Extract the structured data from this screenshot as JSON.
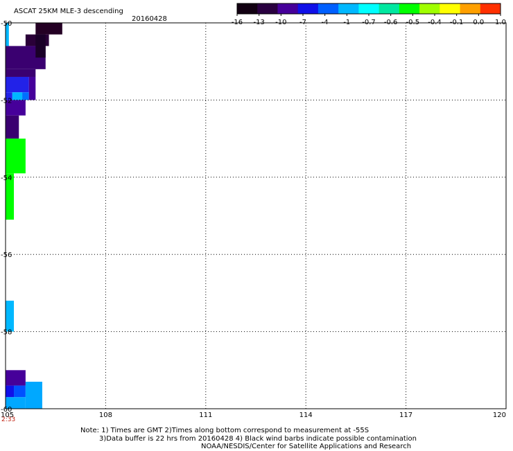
{
  "chart_data": {
    "type": "heatmap",
    "title": "ASCAT 25KM MLE-3 descending",
    "date": "20160428",
    "xlim": [
      105,
      120
    ],
    "ylim": [
      -60,
      -50
    ],
    "x_ticks": [
      "105",
      "108",
      "111",
      "114",
      "117",
      "120"
    ],
    "y_ticks": [
      "-50",
      "-52",
      "-54",
      "-56",
      "-58",
      "-60"
    ],
    "time_label": "2:33",
    "grid": true,
    "colorbar": {
      "labels": [
        "-16",
        "-13",
        "-10",
        "-7",
        "-4",
        "-1",
        "-0.7",
        "-0.6",
        "-0.5",
        "-0.4",
        "-0.1",
        "0.0",
        "1.0"
      ],
      "colors": [
        "#120012",
        "#2a0040",
        "#46009a",
        "#1010e8",
        "#0060ff",
        "#00b8ff",
        "#00ffff",
        "#00e8a0",
        "#00ff00",
        "#a0ff00",
        "#ffff00",
        "#ffa000",
        "#ff3000"
      ]
    },
    "cells": [
      {
        "x0": 105.9,
        "x1": 106.7,
        "y0": -50.0,
        "y1": -50.3,
        "color": "#240024"
      },
      {
        "x0": 105.6,
        "x1": 106.3,
        "y0": -50.3,
        "y1": -50.6,
        "color": "#2a0038"
      },
      {
        "x0": 105.0,
        "x1": 105.1,
        "y0": -50.0,
        "y1": -50.6,
        "color": "#00b8ff"
      },
      {
        "x0": 105.0,
        "x1": 106.2,
        "y0": -50.6,
        "y1": -51.2,
        "color": "#3a0070"
      },
      {
        "x0": 105.9,
        "x1": 106.2,
        "y0": -50.3,
        "y1": -50.9,
        "color": "#1a0028"
      },
      {
        "x0": 105.0,
        "x1": 105.9,
        "y0": -51.2,
        "y1": -51.4,
        "color": "#3a0070"
      },
      {
        "x0": 105.0,
        "x1": 105.7,
        "y0": -51.4,
        "y1": -51.8,
        "color": "#2222e8"
      },
      {
        "x0": 105.2,
        "x1": 105.5,
        "y0": -51.8,
        "y1": -52.0,
        "color": "#00b8ff"
      },
      {
        "x0": 105.5,
        "x1": 105.7,
        "y0": -51.8,
        "y1": -52.0,
        "color": "#0070ff"
      },
      {
        "x0": 105.0,
        "x1": 105.2,
        "y0": -51.8,
        "y1": -52.0,
        "color": "#2222e8"
      },
      {
        "x0": 105.7,
        "x1": 105.9,
        "y0": -51.4,
        "y1": -52.0,
        "color": "#46009a"
      },
      {
        "x0": 105.0,
        "x1": 105.6,
        "y0": -52.0,
        "y1": -52.4,
        "color": "#46009a"
      },
      {
        "x0": 105.0,
        "x1": 105.4,
        "y0": -52.4,
        "y1": -53.0,
        "color": "#3a0070"
      },
      {
        "x0": 105.0,
        "x1": 105.6,
        "y0": -53.0,
        "y1": -53.9,
        "color": "#00ff00"
      },
      {
        "x0": 105.0,
        "x1": 105.25,
        "y0": -53.9,
        "y1": -55.1,
        "color": "#00ff00"
      },
      {
        "x0": 105.0,
        "x1": 105.25,
        "y0": -57.2,
        "y1": -58.0,
        "color": "#00b8ff"
      },
      {
        "x0": 105.0,
        "x1": 105.6,
        "y0": -59.0,
        "y1": -59.4,
        "color": "#46009a"
      },
      {
        "x0": 105.0,
        "x1": 105.25,
        "y0": -59.4,
        "y1": -59.7,
        "color": "#1010e8"
      },
      {
        "x0": 105.25,
        "x1": 105.6,
        "y0": -59.4,
        "y1": -59.7,
        "color": "#0050ff"
      },
      {
        "x0": 105.6,
        "x1": 106.1,
        "y0": -59.3,
        "y1": -60.0,
        "color": "#00a8ff"
      },
      {
        "x0": 105.0,
        "x1": 105.6,
        "y0": -59.7,
        "y1": -60.0,
        "color": "#00a8ff"
      }
    ]
  },
  "footer": {
    "line1": "Note: 1) Times are GMT 2)Times along bottom correspond to measurement at -55S",
    "line2": "3)Data buffer is 22 hrs from 20160428 4) Black wind barbs indicate possible contamination",
    "line3": "NOAA/NESDIS/Center for Satellite Applications and Research"
  }
}
